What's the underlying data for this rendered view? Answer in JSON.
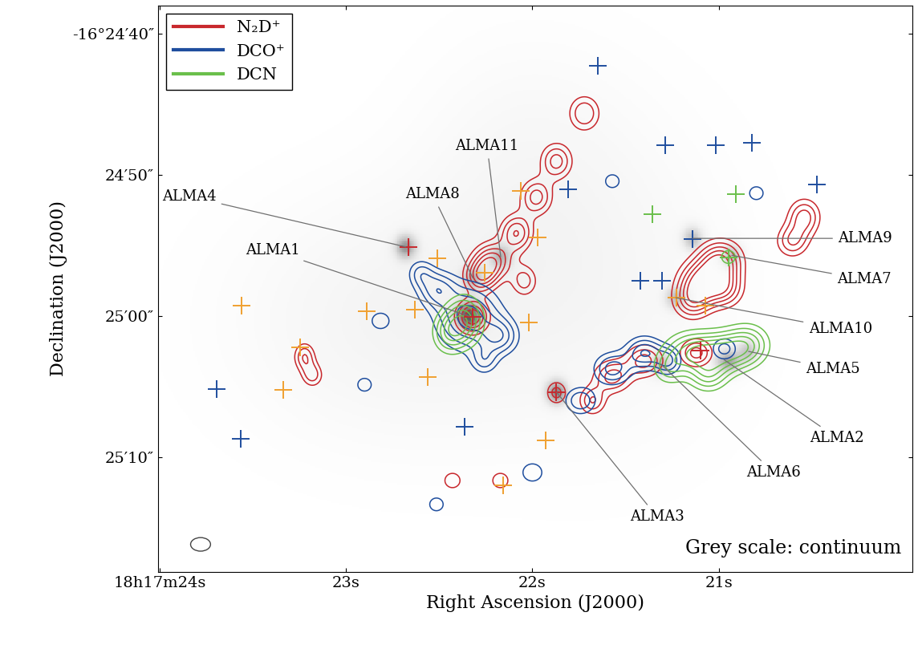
{
  "chart_data": {
    "type": "contour",
    "x_label": "Right Ascension (J2000)",
    "y_label": "Declination (J2000)",
    "xlim": [
      24.01,
      19.96
    ],
    "ylim": [
      78.1,
      38.0
    ],
    "xticks": [
      {
        "value": 24,
        "label": "18h17m24s"
      },
      {
        "value": 23,
        "label": "23s"
      },
      {
        "value": 22,
        "label": "22s"
      },
      {
        "value": 21,
        "label": "21s"
      }
    ],
    "yticks": [
      {
        "value": 40,
        "label": "-16°24′40″"
      },
      {
        "value": 50,
        "label": "24′50″"
      },
      {
        "value": 60,
        "label": "25′00″"
      },
      {
        "value": 70,
        "label": "25′10″"
      }
    ],
    "legend": "upper left",
    "annotations": [
      "Grey scale: continuum"
    ],
    "continuum": [
      [
        22.34,
        60.0,
        0.05,
        0.7,
        1.0
      ],
      [
        20.95,
        63.2,
        0.05,
        0.6,
        0.7
      ],
      [
        21.87,
        65.4,
        0.04,
        0.6,
        0.8
      ],
      [
        22.68,
        55.1,
        0.04,
        0.6,
        0.7
      ],
      [
        20.84,
        62.5,
        0.04,
        0.6,
        0.5
      ],
      [
        21.31,
        63.4,
        0.04,
        0.6,
        0.5
      ],
      [
        20.93,
        55.7,
        0.04,
        0.6,
        0.5
      ],
      [
        22.32,
        57.3,
        0.04,
        0.6,
        0.5
      ],
      [
        21.14,
        54.5,
        0.04,
        0.6,
        0.5
      ],
      [
        21.23,
        58.7,
        0.04,
        0.6,
        0.5
      ],
      [
        22.17,
        55.8,
        0.04,
        0.6,
        0.5
      ],
      [
        22.7,
        60.3,
        0.6,
        6.0,
        0.15
      ],
      [
        21.6,
        57.5,
        0.5,
        8.0,
        0.1
      ],
      [
        22.05,
        49.0,
        0.4,
        6.0,
        0.08
      ]
    ],
    "series": [
      {
        "name": "N₂D⁺",
        "color": "#c8282d",
        "components": [
          [
            22.215,
            56.1,
            0.07,
            0.9,
            1.0
          ],
          [
            22.086,
            54.12,
            0.06,
            0.9,
            0.9
          ],
          [
            21.979,
            51.58,
            0.06,
            0.9,
            0.8
          ],
          [
            21.871,
            49.04,
            0.06,
            0.9,
            0.8
          ],
          [
            21.721,
            45.65,
            0.06,
            0.9,
            0.7
          ],
          [
            22.279,
            57.23,
            0.06,
            0.8,
            0.9
          ],
          [
            22.043,
            57.51,
            0.05,
            0.8,
            0.6
          ],
          [
            22.322,
            60.06,
            0.06,
            0.8,
            1.1
          ],
          [
            20.991,
            56.1,
            0.08,
            1.0,
            1.1
          ],
          [
            21.099,
            57.51,
            0.08,
            1.0,
            1.0
          ],
          [
            21.142,
            58.93,
            0.07,
            0.9,
            0.8
          ],
          [
            20.97,
            58.08,
            0.07,
            0.9,
            0.8
          ],
          [
            20.541,
            52.99,
            0.06,
            0.9,
            0.8
          ],
          [
            20.605,
            54.69,
            0.06,
            0.8,
            0.7
          ],
          [
            21.571,
            64.29,
            0.07,
            0.8,
            0.8
          ],
          [
            21.399,
            63.16,
            0.07,
            0.8,
            0.8
          ],
          [
            21.12,
            62.6,
            0.06,
            0.7,
            0.8
          ],
          [
            21.678,
            65.99,
            0.05,
            0.7,
            0.7
          ],
          [
            21.871,
            65.42,
            0.04,
            0.6,
            0.6
          ],
          [
            23.223,
            62.88,
            0.04,
            0.7,
            0.7
          ],
          [
            23.18,
            64.18,
            0.04,
            0.6,
            0.6
          ],
          [
            22.429,
            71.64,
            0.04,
            0.5,
            0.5
          ],
          [
            22.172,
            71.64,
            0.04,
            0.5,
            0.5
          ]
        ]
      },
      {
        "name": "DCO⁺",
        "color": "#1f4e9e",
        "components": [
          [
            22.343,
            60.06,
            0.12,
            1.6,
            1.0
          ],
          [
            22.515,
            58.08,
            0.07,
            0.9,
            0.7
          ],
          [
            22.172,
            61.47,
            0.07,
            0.9,
            0.7
          ],
          [
            22.601,
            56.95,
            0.05,
            0.7,
            0.5
          ],
          [
            22.258,
            63.16,
            0.05,
            0.7,
            0.5
          ],
          [
            22.815,
            60.34,
            0.05,
            0.6,
            0.45
          ],
          [
            21.399,
            62.6,
            0.07,
            0.8,
            0.9
          ],
          [
            21.571,
            63.73,
            0.07,
            0.8,
            0.8
          ],
          [
            21.742,
            65.99,
            0.06,
            0.7,
            0.7
          ],
          [
            21.27,
            63.16,
            0.05,
            0.7,
            0.7
          ],
          [
            20.97,
            62.32,
            0.05,
            0.6,
            0.6
          ],
          [
            21.571,
            50.45,
            0.04,
            0.5,
            0.45
          ],
          [
            20.798,
            51.3,
            0.04,
            0.5,
            0.45
          ],
          [
            22.0,
            71.07,
            0.05,
            0.6,
            0.5
          ],
          [
            22.515,
            73.33,
            0.04,
            0.5,
            0.45
          ],
          [
            22.901,
            64.86,
            0.04,
            0.5,
            0.45
          ]
        ]
      },
      {
        "name": "DCN",
        "color": "#6abf4b",
        "components": [
          [
            22.365,
            60.34,
            0.07,
            1.2,
            1.0
          ],
          [
            22.451,
            61.19,
            0.06,
            1.0,
            0.7
          ],
          [
            21.142,
            62.6,
            0.1,
            1.0,
            1.0
          ],
          [
            20.97,
            62.6,
            0.09,
            1.0,
            0.9
          ],
          [
            20.841,
            62.03,
            0.08,
            1.0,
            0.8
          ],
          [
            21.056,
            64.29,
            0.07,
            0.8,
            0.6
          ],
          [
            21.27,
            63.73,
            0.06,
            0.8,
            0.5
          ],
          [
            20.948,
            55.82,
            0.04,
            0.5,
            0.45
          ]
        ]
      }
    ],
    "crosses": [
      {
        "color": "#1f4e9e",
        "points": [
          [
            21.648,
            42.26
          ],
          [
            21.288,
            47.91
          ],
          [
            21.017,
            47.91
          ],
          [
            20.82,
            47.74
          ],
          [
            20.472,
            50.68
          ],
          [
            21.807,
            51.02
          ],
          [
            21.142,
            54.52
          ],
          [
            21.421,
            57.51
          ],
          [
            21.305,
            57.51
          ],
          [
            23.695,
            65.14
          ],
          [
            23.567,
            68.7
          ],
          [
            22.365,
            67.85
          ]
        ]
      },
      {
        "color": "#f0a030",
        "points": [
          [
            22.064,
            51.13
          ],
          [
            21.974,
            54.46
          ],
          [
            22.511,
            55.93
          ],
          [
            22.631,
            59.55
          ],
          [
            22.888,
            59.66
          ],
          [
            23.245,
            62.2
          ],
          [
            22.562,
            64.29
          ],
          [
            23.335,
            65.25
          ],
          [
            21.927,
            68.81
          ],
          [
            22.159,
            71.98
          ],
          [
            21.227,
            58.7
          ],
          [
            21.073,
            59.27
          ],
          [
            22.021,
            60.45
          ],
          [
            22.258,
            56.95
          ],
          [
            23.56,
            59.27
          ]
        ]
      },
      {
        "color": "#6abf4b",
        "points": [
          [
            21.356,
            52.77
          ],
          [
            20.906,
            51.36
          ],
          [
            20.948,
            55.88
          ]
        ]
      },
      {
        "color": "#c8282d",
        "points": [
          [
            22.665,
            55.14
          ],
          [
            22.322,
            60.06
          ],
          [
            21.871,
            65.42
          ],
          [
            21.099,
            62.43
          ]
        ]
      }
    ],
    "sources": [
      {
        "name": "ALMA1",
        "ra": 22.34,
        "dec": 60.0
      },
      {
        "name": "ALMA2",
        "ra": 20.97,
        "dec": 63.1
      },
      {
        "name": "ALMA3",
        "ra": 21.87,
        "dec": 65.4
      },
      {
        "name": "ALMA4",
        "ra": 22.68,
        "dec": 55.1
      },
      {
        "name": "ALMA5",
        "ra": 20.84,
        "dec": 62.5
      },
      {
        "name": "ALMA6",
        "ra": 21.31,
        "dec": 63.4
      },
      {
        "name": "ALMA7",
        "ra": 20.93,
        "dec": 55.7
      },
      {
        "name": "ALMA8",
        "ra": 22.32,
        "dec": 57.3
      },
      {
        "name": "ALMA9",
        "ra": 21.14,
        "dec": 54.5
      },
      {
        "name": "ALMA10",
        "ra": 21.23,
        "dec": 58.7
      },
      {
        "name": "ALMA11",
        "ra": 22.17,
        "dec": 55.8
      }
    ],
    "beam": {
      "ra": 23.781,
      "dec": 76.16,
      "width": 0.107,
      "height": 0.96
    }
  }
}
